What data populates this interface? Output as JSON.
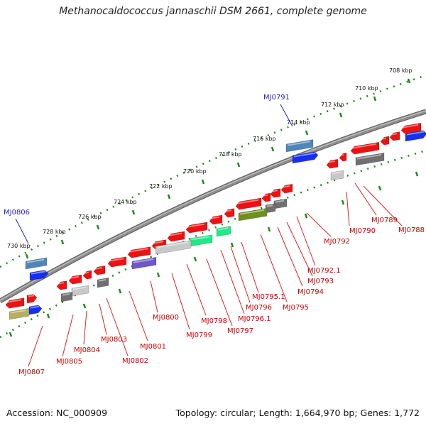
{
  "title": "Methanocaldococcus jannaschii DSM 2661, complete genome",
  "footer": {
    "accession": "Accession: NC_000909",
    "summary": "Topology: circular; Length: 1,664,970 bp; Genes: 1,772"
  },
  "scale_labels": [
    "708 kbp",
    "710 kbp",
    "712 kbp",
    "714 kbp",
    "716 kbp",
    "718 kbp",
    "720 kbp",
    "722 kbp",
    "724 kbp",
    "726 kbp",
    "728 kbp",
    "730 kbp"
  ],
  "highlighted_genes": [
    "MJ0791",
    "MJ0806"
  ],
  "gene_labels": [
    "MJ0788",
    "MJ0789",
    "MJ0790",
    "MJ0792",
    "MJ0792.1",
    "MJ0793",
    "MJ0794",
    "MJ0795",
    "MJ0795.1",
    "MJ0796",
    "MJ0796.1",
    "MJ0797",
    "MJ0798",
    "MJ0799",
    "MJ0800",
    "MJ0801",
    "MJ0802",
    "MJ0803",
    "MJ0804",
    "MJ0805",
    "MJ0807"
  ],
  "colors": {
    "highlight_label": "#2222cc",
    "gene_label": "#cc0000",
    "leader_line": "#dd2222",
    "scale_dots": "#1d8a1d",
    "backbone": "#8c8c8c",
    "feature_red": "#ee1111",
    "feature_blue": "#1530f0",
    "feature_steel": "#4f86b8",
    "feature_gray": "#707070",
    "feature_lightgray": "#c8c8c8",
    "feature_green": "#22e888",
    "feature_olive": "#6e8e1e",
    "feature_purple": "#6e58c8",
    "feature_khaki": "#b8ae60"
  }
}
